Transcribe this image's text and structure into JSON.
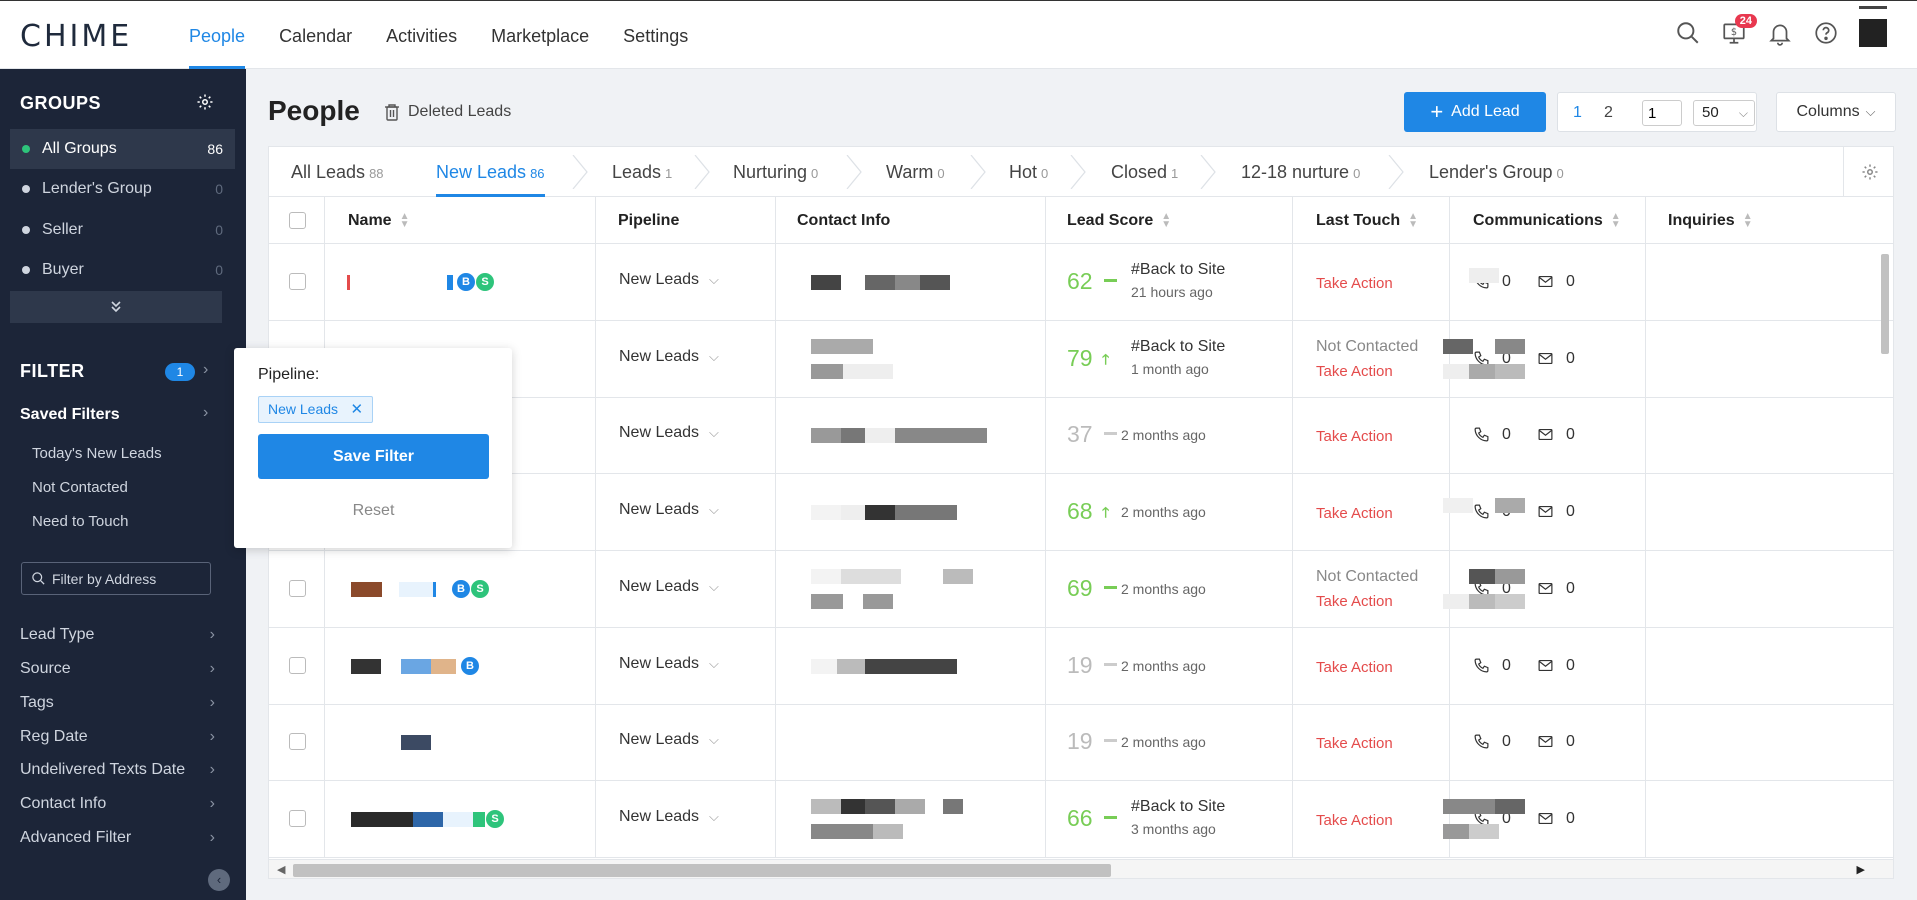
{
  "app": {
    "logo": "CHIME"
  },
  "nav": [
    "People",
    "Calendar",
    "Activities",
    "Marketplace",
    "Settings"
  ],
  "topbar": {
    "notification_count": "24"
  },
  "sidebar": {
    "groups_title": "GROUPS",
    "groups": [
      {
        "label": "All Groups",
        "count": "86"
      },
      {
        "label": "Lender's Group",
        "count": "0"
      },
      {
        "label": "Seller",
        "count": "0"
      },
      {
        "label": "Buyer",
        "count": "0"
      }
    ],
    "filter_title": "FILTER",
    "filter_count": "1",
    "saved_filters_title": "Saved Filters",
    "saved_filters": [
      "Today's New Leads",
      "Not Contacted",
      "Need to Touch"
    ],
    "address_placeholder": "Filter by Address",
    "facets": [
      "Lead Type",
      "Source",
      "Tags",
      "Reg Date",
      "Undelivered Texts Date",
      "Contact Info",
      "Advanced Filter"
    ]
  },
  "main": {
    "title": "People",
    "deleted_leads": "Deleted Leads",
    "add_lead": "Add Lead",
    "pager": {
      "page1": "1",
      "page2": "2",
      "jump_value": "1",
      "per_page": "50"
    },
    "columns_label": "Columns",
    "tabs": [
      {
        "label": "All Leads",
        "count": "88"
      },
      {
        "label": "New Leads",
        "count": "86"
      },
      {
        "label": "Leads",
        "count": "1"
      },
      {
        "label": "Nurturing",
        "count": "0"
      },
      {
        "label": "Warm",
        "count": "0"
      },
      {
        "label": "Hot",
        "count": "0"
      },
      {
        "label": "Closed",
        "count": "1"
      },
      {
        "label": "12-18 nurture",
        "count": "0"
      },
      {
        "label": "Lender's Group",
        "count": "0"
      }
    ],
    "columns": [
      "Name",
      "Pipeline",
      "Contact Info",
      "Lead Score",
      "Last Touch",
      "Communications",
      "Inquiries"
    ],
    "rows": [
      {
        "pipeline": "New Leads",
        "score": "62",
        "trend": "flat",
        "activity": "#Back to Site",
        "time": "21 hours ago",
        "last_touch_status": "",
        "last_touch_action": "Take Action",
        "calls": "0",
        "emails": "0"
      },
      {
        "pipeline": "New Leads",
        "score": "79",
        "trend": "up",
        "activity": "#Back to Site",
        "time": "1 month ago",
        "last_touch_status": "Not Contacted",
        "last_touch_action": "Take Action",
        "calls": "0",
        "emails": "0"
      },
      {
        "pipeline": "New Leads",
        "score": "37",
        "trend": "flat",
        "activity": "",
        "time": "2 months ago",
        "last_touch_status": "",
        "last_touch_action": "Take Action",
        "calls": "0",
        "emails": "0"
      },
      {
        "pipeline": "New Leads",
        "score": "68",
        "trend": "up",
        "activity": "",
        "time": "2 months ago",
        "last_touch_status": "",
        "last_touch_action": "Take Action",
        "calls": "0",
        "emails": "0"
      },
      {
        "pipeline": "New Leads",
        "score": "69",
        "trend": "flat",
        "activity": "",
        "time": "2 months ago",
        "last_touch_status": "Not Contacted",
        "last_touch_action": "Take Action",
        "calls": "0",
        "emails": "0"
      },
      {
        "pipeline": "New Leads",
        "score": "19",
        "trend": "flat",
        "activity": "",
        "time": "2 months ago",
        "last_touch_status": "",
        "last_touch_action": "Take Action",
        "calls": "0",
        "emails": "0"
      },
      {
        "pipeline": "New Leads",
        "score": "19",
        "trend": "flat",
        "activity": "",
        "time": "2 months ago",
        "last_touch_status": "",
        "last_touch_action": "Take Action",
        "calls": "0",
        "emails": "0"
      },
      {
        "pipeline": "New Leads",
        "score": "66",
        "trend": "flat",
        "activity": "#Back to Site",
        "time": "3 months ago",
        "last_touch_status": "",
        "last_touch_action": "Take Action",
        "calls": "0",
        "emails": "0"
      }
    ],
    "badges": {
      "buyer": "B",
      "seller": "S"
    }
  },
  "popover": {
    "label": "Pipeline:",
    "chip": "New Leads",
    "save": "Save Filter",
    "reset": "Reset"
  }
}
